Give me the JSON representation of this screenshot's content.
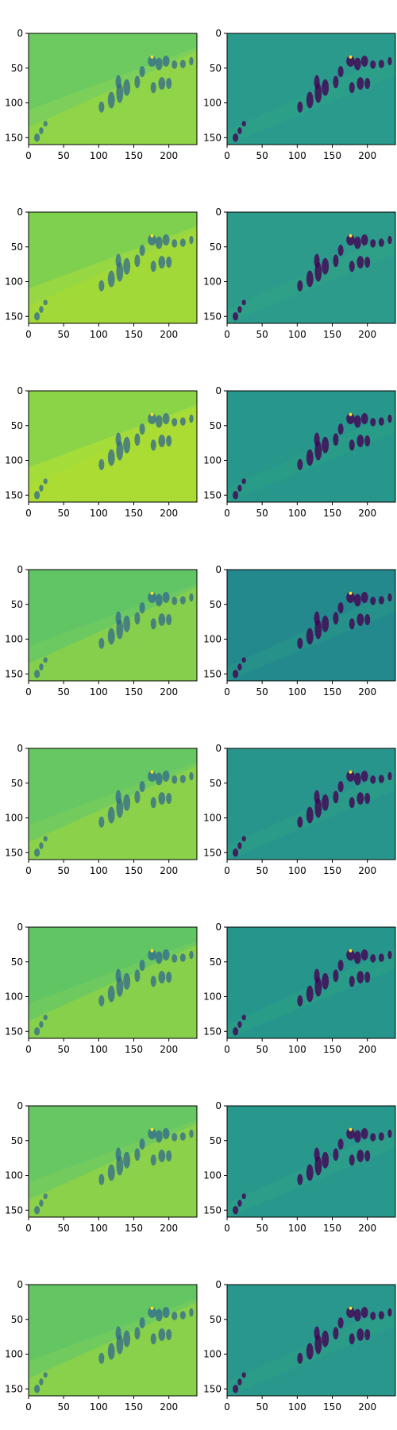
{
  "figure": {
    "background": "#ffffff",
    "axis_color": "#000000",
    "colormap": "viridis"
  },
  "chart_data": [
    {
      "type": "heatmap",
      "row": 1,
      "column": 1,
      "image_kind": "blurred-reconstruction",
      "base_color": "#7ccf5a",
      "xlim": [
        0,
        240
      ],
      "ylim": [
        160,
        0
      ],
      "xticks": [
        0,
        50,
        100,
        150,
        200
      ],
      "yticks": [
        0,
        50,
        100,
        150
      ],
      "grid": false
    },
    {
      "type": "heatmap",
      "row": 1,
      "column": 2,
      "image_kind": "edge-detail",
      "base_color": "#2a9a8d",
      "xlim": [
        0,
        240
      ],
      "ylim": [
        160,
        0
      ],
      "xticks": [
        0,
        50,
        100,
        150,
        200
      ],
      "yticks": [
        0,
        50,
        100,
        150
      ],
      "grid": false
    },
    {
      "type": "heatmap",
      "row": 2,
      "column": 1,
      "image_kind": "blurred-reconstruction",
      "base_color": "#96d743",
      "xlim": [
        0,
        240
      ],
      "ylim": [
        160,
        0
      ],
      "xticks": [
        0,
        50,
        100,
        150,
        200
      ],
      "yticks": [
        0,
        50,
        100,
        150
      ],
      "grid": false
    },
    {
      "type": "heatmap",
      "row": 2,
      "column": 2,
      "image_kind": "edge-detail",
      "base_color": "#2c9b8c",
      "xlim": [
        0,
        240
      ],
      "ylim": [
        160,
        0
      ],
      "xticks": [
        0,
        50,
        100,
        150,
        200
      ],
      "yticks": [
        0,
        50,
        100,
        150
      ],
      "grid": false
    },
    {
      "type": "heatmap",
      "row": 3,
      "column": 1,
      "image_kind": "blurred-reconstruction",
      "base_color": "#a4dc3a",
      "xlim": [
        0,
        240
      ],
      "ylim": [
        160,
        0
      ],
      "xticks": [
        0,
        50,
        100,
        150,
        200
      ],
      "yticks": [
        0,
        50,
        100,
        150
      ],
      "grid": false
    },
    {
      "type": "heatmap",
      "row": 3,
      "column": 2,
      "image_kind": "edge-detail",
      "base_color": "#27978c",
      "xlim": [
        0,
        240
      ],
      "ylim": [
        160,
        0
      ],
      "xticks": [
        0,
        50,
        100,
        150,
        200
      ],
      "yticks": [
        0,
        50,
        100,
        150
      ],
      "grid": false
    },
    {
      "type": "heatmap",
      "row": 4,
      "column": 1,
      "image_kind": "blurred-reconstruction",
      "base_color": "#6cc861",
      "xlim": [
        0,
        240
      ],
      "ylim": [
        160,
        0
      ],
      "xticks": [
        0,
        50,
        100,
        150,
        200
      ],
      "yticks": [
        0,
        50,
        100,
        150
      ],
      "grid": false
    },
    {
      "type": "heatmap",
      "row": 4,
      "column": 2,
      "image_kind": "edge-detail",
      "base_color": "#23898d",
      "xlim": [
        0,
        240
      ],
      "ylim": [
        160,
        0
      ],
      "xticks": [
        0,
        50,
        100,
        150,
        200
      ],
      "yticks": [
        0,
        50,
        100,
        150
      ],
      "grid": false
    },
    {
      "type": "heatmap",
      "row": 5,
      "column": 1,
      "image_kind": "blurred-reconstruction",
      "base_color": "#74cb5d",
      "xlim": [
        0,
        240
      ],
      "ylim": [
        160,
        0
      ],
      "xticks": [
        0,
        50,
        100,
        150,
        200
      ],
      "yticks": [
        0,
        50,
        100,
        150
      ],
      "grid": false
    },
    {
      "type": "heatmap",
      "row": 5,
      "column": 2,
      "image_kind": "edge-detail",
      "base_color": "#28958c",
      "xlim": [
        0,
        240
      ],
      "ylim": [
        160,
        0
      ],
      "xticks": [
        0,
        50,
        100,
        150,
        200
      ],
      "yticks": [
        0,
        50,
        100,
        150
      ],
      "grid": false
    },
    {
      "type": "heatmap",
      "row": 6,
      "column": 1,
      "image_kind": "blurred-reconstruction",
      "base_color": "#6ec95f",
      "xlim": [
        0,
        240
      ],
      "ylim": [
        160,
        0
      ],
      "xticks": [
        0,
        50,
        100,
        150,
        200
      ],
      "yticks": [
        0,
        50,
        100,
        150
      ],
      "grid": false
    },
    {
      "type": "heatmap",
      "row": 6,
      "column": 2,
      "image_kind": "edge-detail",
      "base_color": "#26968c",
      "xlim": [
        0,
        240
      ],
      "ylim": [
        160,
        0
      ],
      "xticks": [
        0,
        50,
        100,
        150,
        200
      ],
      "yticks": [
        0,
        50,
        100,
        150
      ],
      "grid": false
    },
    {
      "type": "heatmap",
      "row": 7,
      "column": 1,
      "image_kind": "blurred-reconstruction",
      "base_color": "#74cb5d",
      "xlim": [
        0,
        240
      ],
      "ylim": [
        160,
        0
      ],
      "xticks": [
        0,
        50,
        100,
        150,
        200
      ],
      "yticks": [
        0,
        50,
        100,
        150
      ],
      "grid": false
    },
    {
      "type": "heatmap",
      "row": 7,
      "column": 2,
      "image_kind": "edge-detail",
      "base_color": "#29988c",
      "xlim": [
        0,
        240
      ],
      "ylim": [
        160,
        0
      ],
      "xticks": [
        0,
        50,
        100,
        150,
        200
      ],
      "yticks": [
        0,
        50,
        100,
        150
      ],
      "grid": false
    },
    {
      "type": "heatmap",
      "row": 8,
      "column": 1,
      "image_kind": "blurred-reconstruction",
      "base_color": "#70ca5e",
      "xlim": [
        0,
        240
      ],
      "ylim": [
        160,
        0
      ],
      "xticks": [
        0,
        50,
        100,
        150,
        200
      ],
      "yticks": [
        0,
        50,
        100,
        150
      ],
      "grid": false
    },
    {
      "type": "heatmap",
      "row": 8,
      "column": 2,
      "image_kind": "edge-detail",
      "base_color": "#29978c",
      "xlim": [
        0,
        240
      ],
      "ylim": [
        160,
        0
      ],
      "xticks": [
        0,
        50,
        100,
        150,
        200
      ],
      "yticks": [
        0,
        50,
        100,
        150
      ],
      "grid": false
    }
  ]
}
